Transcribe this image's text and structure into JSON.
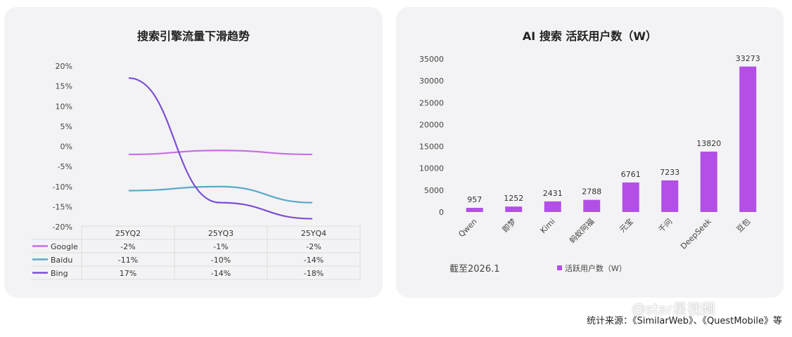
{
  "left_title": "搜索引擎流量下滑趋势",
  "right_title": "AI 搜索 活跃用户数（W）",
  "footnote": "截至2026.1",
  "source": "统计来源：《SimilarWeb》、《QuestMobile》等",
  "watermark": "@star星视频",
  "colors": {
    "google": "#c86ee6",
    "baidu": "#5aa9c8",
    "bing": "#7b4fd0",
    "bar": "#b34fe6"
  },
  "chart_data": [
    {
      "type": "line",
      "title": "搜索引擎流量下滑趋势",
      "categories": [
        "25YQ2",
        "25YQ3",
        "25YQ4"
      ],
      "yticks": [
        "20%",
        "15%",
        "10%",
        "5%",
        "0%",
        "-5%",
        "-10%",
        "-15%",
        "-20%"
      ],
      "ylim": [
        -20,
        20
      ],
      "series": [
        {
          "name": "Google",
          "values": [
            -2,
            -1,
            -2
          ],
          "labels": [
            "-2%",
            "-1%",
            "-2%"
          ]
        },
        {
          "name": "Baidu",
          "values": [
            -11,
            -10,
            -14
          ],
          "labels": [
            "-11%",
            "-10%",
            "-14%"
          ]
        },
        {
          "name": "Bing",
          "values": [
            17,
            -14,
            -18
          ],
          "labels": [
            "17%",
            "-14%",
            "-18%"
          ]
        }
      ],
      "grid": false,
      "legend": "data-table"
    },
    {
      "type": "bar",
      "title": "AI 搜索 活跃用户数（W）",
      "categories": [
        "Qwen",
        "即梦",
        "Kimi",
        "蚂蚁阿福",
        "元宝",
        "千问",
        "DeepSeek",
        "豆包"
      ],
      "values": [
        957,
        1252,
        2431,
        2788,
        6761,
        7233,
        13820,
        33273
      ],
      "yticks": [
        "35000",
        "30000",
        "25000",
        "20000",
        "15000",
        "10000",
        "5000",
        "0"
      ],
      "ylim": [
        0,
        35000
      ],
      "legend_label": "活跃用户数（W）",
      "legend": "bottom"
    }
  ]
}
